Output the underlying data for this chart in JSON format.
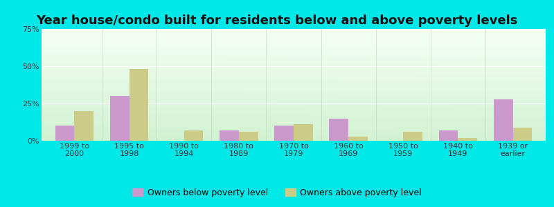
{
  "title": "Year house/condo built for residents below and above poverty levels",
  "categories": [
    "1999 to\n2000",
    "1995 to\n1998",
    "1990 to\n1994",
    "1980 to\n1989",
    "1970 to\n1979",
    "1960 to\n1969",
    "1950 to\n1959",
    "1940 to\n1949",
    "1939 or\nearlier"
  ],
  "below_poverty": [
    10,
    30,
    0,
    7,
    10,
    15,
    0,
    7,
    28
  ],
  "above_poverty": [
    20,
    48,
    7,
    6,
    11,
    3,
    6,
    2,
    9
  ],
  "below_color": "#cc99cc",
  "above_color": "#cccc88",
  "ylim": [
    0,
    75
  ],
  "yticks": [
    0,
    25,
    50,
    75
  ],
  "ytick_labels": [
    "0%",
    "25%",
    "50%",
    "75%"
  ],
  "bar_width": 0.35,
  "legend_below": "Owners below poverty level",
  "legend_above": "Owners above poverty level",
  "outer_bg": "#00e8e8",
  "grid_color": "#dddddd",
  "title_fontsize": 13,
  "tick_fontsize": 8,
  "legend_fontsize": 9
}
